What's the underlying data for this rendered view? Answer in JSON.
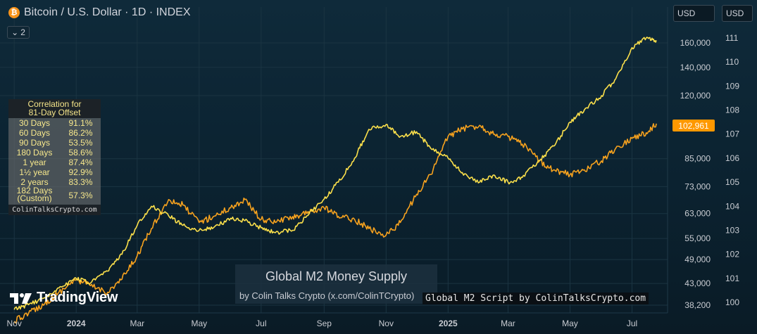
{
  "header": {
    "symbol_title": "Bitcoin / U.S. Dollar · 1D · INDEX",
    "btc_glyph": "₿",
    "indicator_count": "2",
    "chevron": "⌄"
  },
  "currency": {
    "left": "USD",
    "right": "USD"
  },
  "correlation": {
    "title_line1": "Correlation for",
    "title_line2": "81-Day Offset",
    "rows": [
      {
        "label": "30 Days",
        "value": "91.1%"
      },
      {
        "label": "60 Days",
        "value": "86.2%"
      },
      {
        "label": "90 Days",
        "value": "53.5%"
      },
      {
        "label": "180 Days",
        "value": "58.6%"
      },
      {
        "label": "1 year",
        "value": "87.4%"
      },
      {
        "label": "1½ year",
        "value": "92.9%"
      },
      {
        "label": "2 years",
        "value": "83.3%"
      }
    ],
    "custom_label_1": "182 Days",
    "custom_label_2": "(Custom)",
    "custom_value": "57.3%",
    "footer": "ColinTalksCrypto.com"
  },
  "overlay": {
    "title": "Global M2 Money Supply",
    "subtitle": "by Colin Talks Crypto (x.com/ColinTCrypto)",
    "script_label": "Global M2 Script by ColinTalksCrypto.com",
    "brand": "TradingView"
  },
  "price_badge": "102,961",
  "colors": {
    "btc_line": "#f7a21e",
    "m2_line": "#fce04b",
    "badge": "#ff9800",
    "background": "#0b2230",
    "grid": "#1b3442"
  },
  "chart_data": {
    "type": "line",
    "x_ticks": [
      "Nov",
      "2024",
      "Mar",
      "May",
      "Jul",
      "Sep",
      "Nov",
      "2025",
      "Mar",
      "May",
      "Jul"
    ],
    "y_left_ticks": [
      160000,
      140000,
      120000,
      102961,
      85000,
      73000,
      63000,
      55000,
      49000,
      43000,
      38200
    ],
    "y_left_labels": [
      "160,000",
      "140,000",
      "120,000",
      "85,000",
      "73,000",
      "63,000",
      "55,000",
      "49,000",
      "43,000",
      "38,200"
    ],
    "y_right_labels": [
      "111",
      "110",
      "109",
      "108",
      "107",
      "106",
      "105",
      "104",
      "103",
      "102",
      "101",
      "100"
    ],
    "y_left_scale": "log",
    "grid": true,
    "series": [
      {
        "axis": "left",
        "x": [
          "2023-11-01",
          "2023-11-15",
          "2023-12-01",
          "2023-12-15",
          "2024-01-01",
          "2024-01-15",
          "2024-02-01",
          "2024-02-15",
          "2024-03-01",
          "2024-03-15",
          "2024-04-01",
          "2024-04-15",
          "2024-05-01",
          "2024-05-15",
          "2024-06-01",
          "2024-06-15",
          "2024-07-01",
          "2024-07-15",
          "2024-08-01",
          "2024-08-15",
          "2024-09-01",
          "2024-09-15",
          "2024-10-01",
          "2024-10-15",
          "2024-11-01",
          "2024-11-15",
          "2024-12-01",
          "2024-12-15",
          "2025-01-01",
          "2025-01-15",
          "2025-02-01",
          "2025-02-15",
          "2025-03-01",
          "2025-03-15",
          "2025-04-01",
          "2025-04-15",
          "2025-05-01",
          "2025-05-15",
          "2025-06-01",
          "2025-06-15",
          "2025-07-01",
          "2025-07-15",
          "2025-07-25"
        ],
        "values": [
          35000,
          36500,
          38500,
          41000,
          44000,
          42500,
          41000,
          44000,
          50000,
          58000,
          68000,
          66000,
          60000,
          62000,
          65000,
          68000,
          61000,
          60000,
          62000,
          63000,
          65000,
          62000,
          61000,
          58000,
          56000,
          60000,
          70000,
          78000,
          96000,
          100000,
          102000,
          97000,
          96000,
          92000,
          84000,
          80000,
          78000,
          80000,
          84000,
          90000,
          95000,
          98000,
          102961
        ]
      },
      {
        "axis": "right",
        "x": [
          "2023-11-01",
          "2023-11-15",
          "2023-12-01",
          "2023-12-15",
          "2024-01-01",
          "2024-01-15",
          "2024-02-01",
          "2024-02-15",
          "2024-03-01",
          "2024-03-15",
          "2024-04-01",
          "2024-04-15",
          "2024-05-01",
          "2024-05-15",
          "2024-06-01",
          "2024-06-15",
          "2024-07-01",
          "2024-07-15",
          "2024-08-01",
          "2024-08-15",
          "2024-09-01",
          "2024-09-15",
          "2024-10-01",
          "2024-10-15",
          "2024-11-01",
          "2024-11-15",
          "2024-12-01",
          "2024-12-15",
          "2025-01-01",
          "2025-01-15",
          "2025-02-01",
          "2025-02-15",
          "2025-03-01",
          "2025-03-15",
          "2025-04-01",
          "2025-04-15",
          "2025-05-01",
          "2025-05-15",
          "2025-06-01",
          "2025-06-15",
          "2025-07-01",
          "2025-07-15",
          "2025-07-25"
        ],
        "values": [
          99.7,
          99.9,
          100.2,
          100.6,
          101.0,
          100.8,
          101.3,
          102.0,
          103.2,
          104.0,
          103.6,
          103.2,
          103.0,
          103.1,
          103.5,
          103.4,
          103.1,
          102.9,
          103.0,
          103.6,
          104.3,
          105.0,
          106.0,
          107.2,
          107.4,
          106.9,
          107.1,
          106.4,
          106.0,
          105.4,
          105.0,
          105.3,
          105.0,
          105.2,
          105.9,
          106.5,
          107.5,
          108.0,
          108.6,
          109.3,
          110.6,
          111.0,
          110.9
        ]
      }
    ]
  }
}
